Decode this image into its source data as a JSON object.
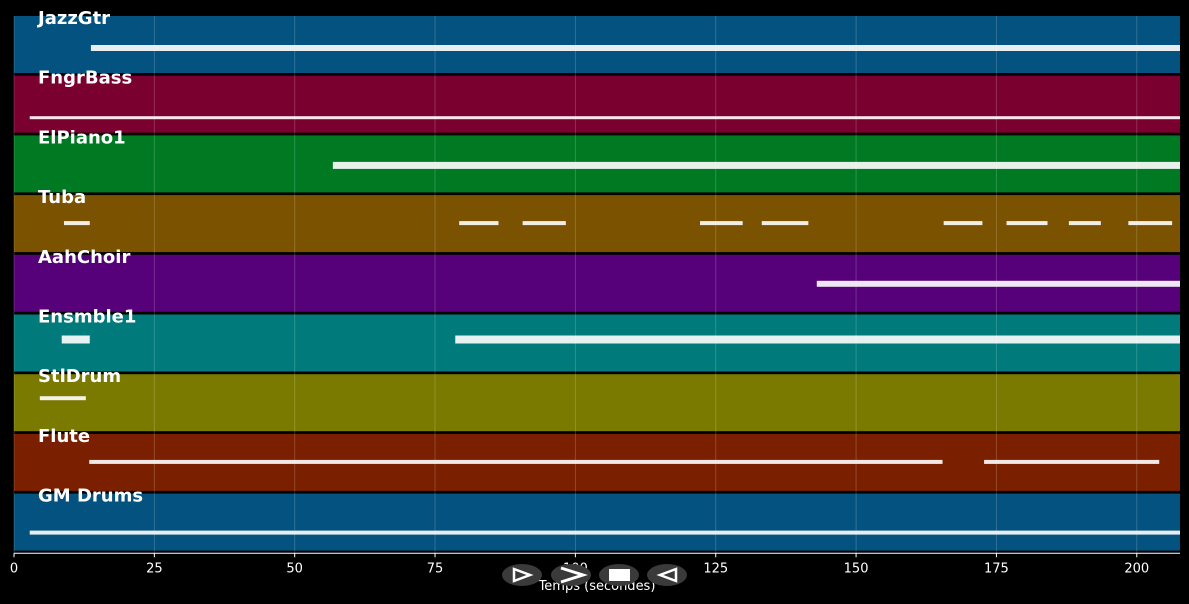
{
  "chart_data": {
    "type": "pianoroll",
    "xlabel": "Temps (secondes)",
    "xlim": [
      0,
      207.7
    ],
    "xticks": [
      0,
      25,
      50,
      75,
      100,
      125,
      150,
      175,
      200
    ],
    "grid": true,
    "tracks": [
      {
        "name": "JazzGtr",
        "color": "#04527f",
        "notes": [
          [
            13.7,
            207.7
          ]
        ]
      },
      {
        "name": "FngrBass",
        "color": "#7a002f",
        "notes": [
          [
            2.8,
            207.7
          ]
        ]
      },
      {
        "name": "ElPiano1",
        "color": "#007a22",
        "notes": [
          [
            56.8,
            207.7
          ]
        ]
      },
      {
        "name": "Tuba",
        "color": "#7a5200",
        "notes": [
          [
            8.9,
            13.5
          ],
          [
            79.3,
            86.3
          ],
          [
            90.6,
            98.3
          ],
          [
            122.2,
            129.8
          ],
          [
            133.2,
            141.5
          ],
          [
            165.6,
            172.5
          ],
          [
            176.8,
            184.1
          ],
          [
            187.9,
            193.6
          ],
          [
            198.5,
            206.3
          ]
        ]
      },
      {
        "name": "AahChoir",
        "color": "#56007a",
        "notes": [
          [
            143.0,
            207.7
          ]
        ]
      },
      {
        "name": "Ensmble1",
        "color": "#007a7a",
        "notes": [
          [
            8.5,
            13.5
          ],
          [
            78.6,
            207.7
          ]
        ]
      },
      {
        "name": "StlDrum",
        "color": "#7a7a00",
        "notes": [
          [
            4.6,
            12.8
          ]
        ]
      },
      {
        "name": "Flute",
        "color": "#7a2000",
        "notes": [
          [
            13.4,
            165.4
          ],
          [
            172.8,
            204.0
          ]
        ]
      },
      {
        "name": "GM Drums",
        "color": "#04527f",
        "notes": [
          [
            2.8,
            207.7
          ]
        ]
      }
    ]
  }
}
